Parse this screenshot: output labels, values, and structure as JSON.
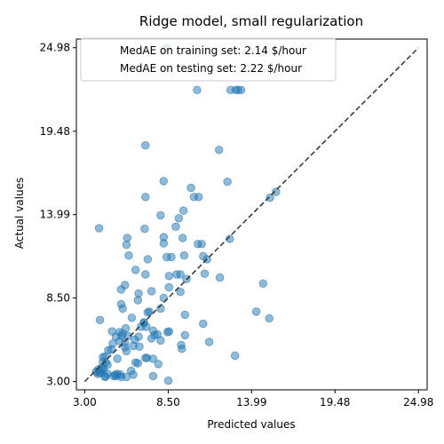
{
  "chart_data": {
    "type": "scatter",
    "title": "Ridge model, small regularization",
    "xlabel": "Predicted values",
    "ylabel": "Actual values",
    "xlim": [
      2.45,
      25.55
    ],
    "ylim": [
      2.45,
      25.55
    ],
    "xticks": [
      3.0,
      8.5,
      13.99,
      19.48,
      24.98
    ],
    "yticks": [
      3.0,
      8.5,
      13.99,
      19.48,
      24.98
    ],
    "tick_labels": [
      "3.00",
      "8.50",
      "13.99",
      "19.48",
      "24.98"
    ],
    "reference_line": {
      "style": "dashed",
      "color": "#333333",
      "from": [
        3.0,
        3.0
      ],
      "to": [
        24.98,
        24.98
      ]
    },
    "legend": {
      "placement": "upper-left",
      "entries": [
        "MedAE on training set: 2.14 $/hour",
        "MedAE on testing set: 2.22 $/hour"
      ]
    },
    "point_color": "#1f77b4",
    "point_alpha": 0.5,
    "x": [
      8.37,
      10.4,
      12.6,
      12.95,
      13.1,
      13.3,
      7.0,
      11.85,
      8.2,
      12.4,
      10.0,
      15.6,
      10.2,
      10.5,
      7.0,
      15.2,
      9.5,
      9.2,
      8.0,
      9.0,
      12.55,
      8.2,
      8.2,
      9.45,
      10.45,
      10.7,
      5.8,
      5.75,
      5.9,
      3.95,
      6.95,
      8.4,
      8.7,
      10.8,
      11.05,
      7.15,
      9.55,
      11.9,
      6.35,
      7.0,
      9.05,
      9.3,
      9.7,
      10.9,
      5.65,
      8.55,
      6.55,
      5.4,
      7.4,
      14.75,
      8.55,
      8.0,
      9.3,
      6.5,
      5.4,
      5.5,
      7.25,
      8.2,
      14.3,
      7.15,
      6.1,
      15.15,
      6.9,
      9.6,
      10.8,
      4.0,
      7.05,
      5.7,
      5.3,
      5.5,
      6.7,
      6.9,
      7.5,
      7.8,
      8.55,
      8.45,
      9.6,
      5.45,
      5.85,
      7.6,
      6.55,
      8.0,
      9.35,
      11.2,
      5.65,
      6.3,
      5.05,
      4.8,
      5.3,
      7.4,
      9.4,
      12.9,
      6.2,
      6.6,
      5.65,
      7.0,
      7.1,
      4.55,
      4.75,
      4.35,
      5.75,
      7.85,
      4.85,
      6.35,
      6.5,
      7.5,
      8.5,
      4.2,
      5.15,
      4.2,
      3.95,
      4.4,
      3.85,
      4.35,
      5.15,
      5.35,
      5.05,
      6.2,
      6.05,
      7.5,
      4.5,
      4.1,
      3.9,
      4.15,
      3.75,
      4.25,
      4.05,
      4.35,
      4.5,
      4.9,
      5.0,
      5.4,
      5.75
    ],
    "y": [
      24.95,
      22.2,
      22.2,
      22.2,
      22.2,
      22.2,
      18.55,
      18.25,
      16.2,
      16.15,
      15.75,
      15.5,
      15.15,
      15.15,
      15.15,
      15.1,
      14.25,
      13.75,
      13.95,
      13.2,
      12.4,
      12.5,
      12.1,
      12.45,
      12.05,
      12.05,
      12.45,
      12.0,
      11.3,
      13.1,
      13.05,
      11.2,
      11.2,
      11.25,
      11.05,
      11.05,
      11.3,
      9.85,
      10.35,
      10.05,
      10.05,
      10.05,
      9.75,
      10.1,
      9.35,
      9.95,
      8.8,
      9.05,
      8.95,
      9.45,
      9.2,
      7.8,
      8.9,
      8.35,
      8.1,
      7.8,
      7.6,
      8.5,
      7.6,
      7.55,
      7.2,
      7.15,
      6.85,
      7.4,
      6.8,
      7.05,
      6.6,
      6.5,
      6.25,
      6.15,
      6.6,
      6.9,
      6.35,
      6.1,
      6.3,
      6.25,
      6.05,
      6.0,
      6.0,
      6.05,
      5.95,
      5.7,
      5.4,
      5.6,
      5.55,
      5.75,
      5.95,
      6.3,
      5.65,
      5.85,
      5.15,
      4.7,
      5.35,
      5.3,
      5.25,
      4.55,
      4.55,
      5.05,
      5.1,
      4.65,
      5.0,
      4.15,
      5.5,
      4.25,
      4.2,
      3.35,
      3.05,
      4.6,
      4.5,
      4.3,
      3.6,
      4.25,
      3.5,
      3.35,
      3.5,
      3.45,
      3.35,
      3.45,
      3.7,
      4.5,
      4.1,
      3.9,
      3.8,
      3.8,
      3.65,
      3.85,
      3.55,
      3.3,
      3.5,
      3.35,
      3.45,
      3.3,
      3.3
    ]
  }
}
